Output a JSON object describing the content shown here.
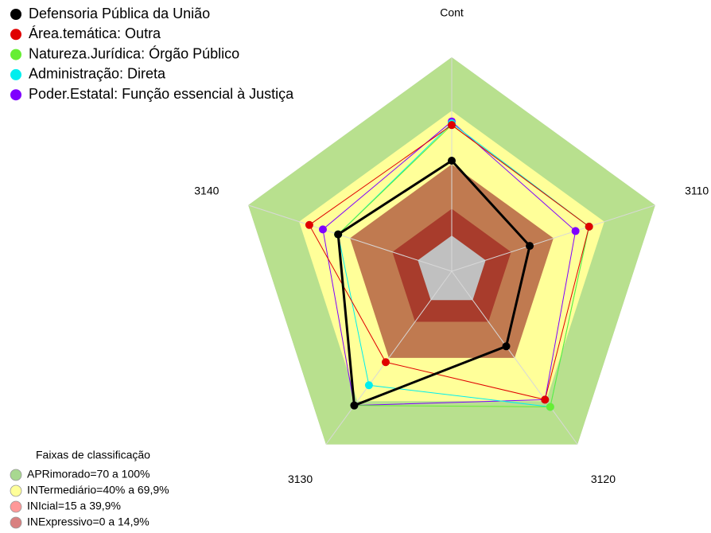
{
  "chart_data": {
    "type": "radar",
    "categories": [
      "Cont",
      "3110",
      "3120",
      "3130",
      "3140"
    ],
    "rlim": [
      -20,
      100
    ],
    "series": [
      {
        "name": "Defensoria Pública da União",
        "color": "#000000",
        "values": [
          42,
          26,
          32,
          73,
          47
        ]
      },
      {
        "name": "Área.temática: Outra",
        "color": "#e00000",
        "values": [
          62,
          61,
          69,
          43,
          64
        ]
      },
      {
        "name": "Natureza.Jurídica: Órgão Público",
        "color": "#66ee33",
        "values": [
          62,
          61,
          74,
          73,
          47
        ]
      },
      {
        "name": "Administração: Direta",
        "color": "#00eeee",
        "values": [
          63,
          61,
          74,
          59,
          47
        ]
      },
      {
        "name": "Poder.Estatal: Função essencial à Justiça",
        "color": "#7f00ff",
        "values": [
          64,
          53,
          69,
          73,
          56
        ]
      }
    ],
    "bands_title": "Faixas de classificação",
    "bands": [
      {
        "name": "APRimorado=70 a 100%",
        "from": 70,
        "to": 100,
        "color": "#b8e08e",
        "legend_color": "#a8d890"
      },
      {
        "name": "INTermediário=40% a 69,9%",
        "from": 40,
        "to": 70,
        "color": "#ffff99",
        "legend_color": "#ffff99"
      },
      {
        "name": "INIcial=15 a 39,9%",
        "from": 15,
        "to": 40,
        "color": "#c07a50",
        "legend_color": "#ff9999"
      },
      {
        "name": "INExpressivo=0 a 14,9%",
        "from": 0,
        "to": 15,
        "color": "#a83c2c",
        "legend_color": "#d98080"
      }
    ]
  }
}
